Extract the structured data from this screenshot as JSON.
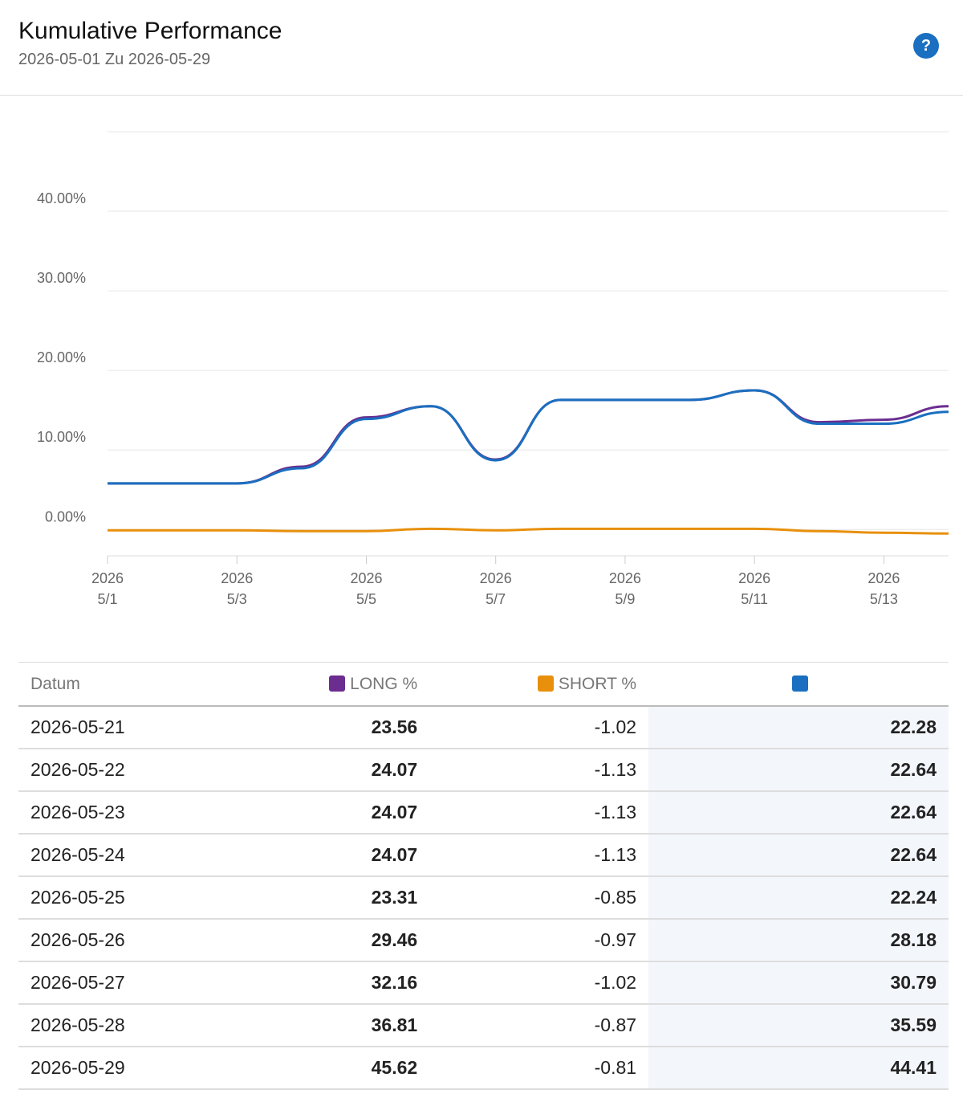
{
  "header": {
    "title": "Kumulative Performance",
    "subtitle": "2026-05-01 Zu 2026-05-29",
    "help": "?"
  },
  "chart_data": {
    "type": "line",
    "x": [
      "2026-05-01",
      "2026-05-02",
      "2026-05-03",
      "2026-05-04",
      "2026-05-05",
      "2026-05-06",
      "2026-05-07",
      "2026-05-08",
      "2026-05-09",
      "2026-05-10",
      "2026-05-11",
      "2026-05-12",
      "2026-05-13",
      "2026-05-14"
    ],
    "series": [
      {
        "name": "LONG %",
        "color": "#6b2d8f",
        "values": [
          5.8,
          5.8,
          5.8,
          7.9,
          14.1,
          15.5,
          8.8,
          16.3,
          16.3,
          16.3,
          17.5,
          13.5,
          13.8,
          15.5
        ]
      },
      {
        "name": "SHORT %",
        "color": "#e8900c",
        "values": [
          -0.1,
          -0.1,
          -0.1,
          -0.2,
          -0.2,
          0.1,
          -0.1,
          0.1,
          0.1,
          0.1,
          0.1,
          -0.2,
          -0.4,
          -0.5
        ]
      },
      {
        "color": "#1a6fc0",
        "values": [
          5.8,
          5.8,
          5.8,
          7.7,
          13.9,
          15.5,
          8.7,
          16.3,
          16.3,
          16.3,
          17.5,
          13.3,
          13.3,
          14.8
        ]
      }
    ],
    "xlim": [
      "2026-05-01",
      "2026-05-14"
    ],
    "xticks": [
      {
        "value": "2026-05-01",
        "label": [
          "2026",
          "5/1"
        ]
      },
      {
        "value": "2026-05-03",
        "label": [
          "2026",
          "5/3"
        ]
      },
      {
        "value": "2026-05-05",
        "label": [
          "2026",
          "5/5"
        ]
      },
      {
        "value": "2026-05-07",
        "label": [
          "2026",
          "5/7"
        ]
      },
      {
        "value": "2026-05-09",
        "label": [
          "2026",
          "5/9"
        ]
      },
      {
        "value": "2026-05-11",
        "label": [
          "2026",
          "5/11"
        ]
      },
      {
        "value": "2026-05-13",
        "label": [
          "2026",
          "5/13"
        ]
      }
    ],
    "ylim": [
      -3.3,
      50
    ],
    "yticks": [
      {
        "value": 0,
        "label": "0.00%"
      },
      {
        "value": 10,
        "label": "10.00%"
      },
      {
        "value": 20,
        "label": "20.00%"
      },
      {
        "value": 30,
        "label": "30.00%"
      },
      {
        "value": 40,
        "label": "40.00%"
      }
    ],
    "grid": true
  },
  "table": {
    "date_header": "Datum",
    "rows": [
      [
        "2026-05-21",
        23.56,
        -1.02,
        22.28
      ],
      [
        "2026-05-22",
        24.07,
        -1.13,
        22.64
      ],
      [
        "2026-05-23",
        24.07,
        -1.13,
        22.64
      ],
      [
        "2026-05-24",
        24.07,
        -1.13,
        22.64
      ],
      [
        "2026-05-25",
        23.31,
        -0.85,
        22.24
      ],
      [
        "2026-05-26",
        29.46,
        -0.97,
        28.18
      ],
      [
        "2026-05-27",
        32.16,
        -1.02,
        30.79
      ],
      [
        "2026-05-28",
        36.81,
        -0.87,
        35.59
      ],
      [
        "2026-05-29",
        45.62,
        -0.81,
        44.41
      ]
    ]
  }
}
